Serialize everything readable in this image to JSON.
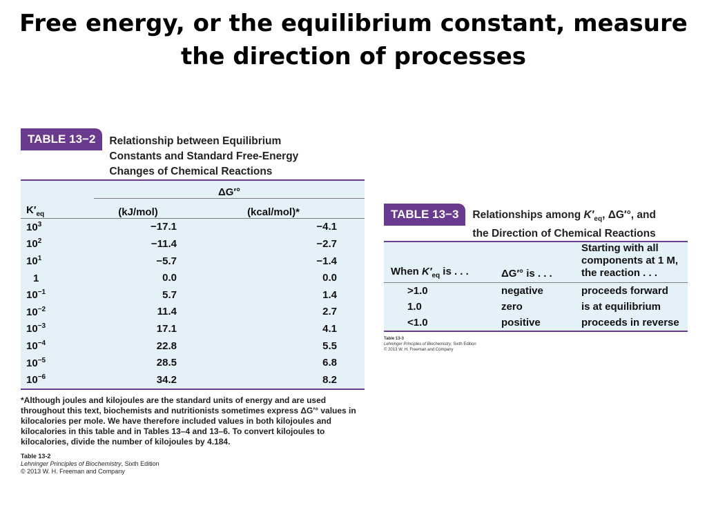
{
  "slide": {
    "title": "Free energy, or the equilibrium constant, measure the direction of processes"
  },
  "table_13_2": {
    "badge": "TABLE 13−2",
    "caption_lines": [
      "Relationship between Equilibrium",
      "Constants and Standard Free-Energy",
      "Changes of Chemical Reactions"
    ],
    "group_header": "ΔG′°",
    "col_keq": "K′",
    "col_keq_sub": "eq",
    "col_kj": "(kJ/mol)",
    "col_kcal": "(kcal/mol)*",
    "rows": [
      {
        "keq_base": "10",
        "keq_exp": "3",
        "kj": "−17.1",
        "kcal": "−4.1"
      },
      {
        "keq_base": "10",
        "keq_exp": "2",
        "kj": "−11.4",
        "kcal": "−2.7"
      },
      {
        "keq_base": "10",
        "keq_exp": "1",
        "kj": "−5.7",
        "kcal": "−1.4"
      },
      {
        "keq_base": "1",
        "keq_exp": "",
        "kj": "0.0",
        "kcal": "0.0"
      },
      {
        "keq_base": "10",
        "keq_exp": "−1",
        "kj": "5.7",
        "kcal": "1.4"
      },
      {
        "keq_base": "10",
        "keq_exp": "−2",
        "kj": "11.4",
        "kcal": "2.7"
      },
      {
        "keq_base": "10",
        "keq_exp": "−3",
        "kj": "17.1",
        "kcal": "4.1"
      },
      {
        "keq_base": "10",
        "keq_exp": "−4",
        "kj": "22.8",
        "kcal": "5.5"
      },
      {
        "keq_base": "10",
        "keq_exp": "−5",
        "kj": "28.5",
        "kcal": "6.8"
      },
      {
        "keq_base": "10",
        "keq_exp": "−6",
        "kj": "34.2",
        "kcal": "8.2"
      }
    ],
    "footnote": "*Although joules and kilojoules are the standard units of energy and are used throughout this text, biochemists and nutritionists sometimes express ΔG′° values in kilocalories per mole. We have therefore included values in both kilojoules and kilocalories in this table and in Tables 13–4 and 13–6. To convert kilojoules to kilocalories, divide the number of kilojoules by 4.184.",
    "credit_label": "Table 13-2",
    "credit_source": "Lehninger Principles of Biochemistry",
    "credit_edition": ", Sixth Edition",
    "credit_copyright": "© 2013 W. H. Freeman and Company"
  },
  "table_13_3": {
    "badge": "TABLE 13−3",
    "caption_line1_a": "Relationships among ",
    "caption_keq": "K′",
    "caption_keq_sub": "eq",
    "caption_line1_b": ", ΔG′°, and",
    "caption_line2": "the Direction of Chemical Reactions",
    "header_when_a": "When ",
    "header_when_keq": "K′",
    "header_when_sub": "eq",
    "header_when_b": " is . . .",
    "header_dg": "ΔG′° is . . .",
    "header_start_lines": [
      "Starting with all",
      "components at 1 M,",
      "the reaction . . ."
    ],
    "rows": [
      {
        "keq": ">1.0",
        "dg": "negative",
        "reaction": "proceeds forward"
      },
      {
        "keq": "1.0",
        "dg": "zero",
        "reaction": "is at equilibrium"
      },
      {
        "keq": "<1.0",
        "dg": "positive",
        "reaction": "proceeds in reverse"
      }
    ],
    "credit_label": "Table 13-3",
    "credit_source": "Lehninger Principles of Biochemistry",
    "credit_edition": ", Sixth Edition",
    "credit_copyright": "© 2013 W. H. Freeman and Company"
  }
}
